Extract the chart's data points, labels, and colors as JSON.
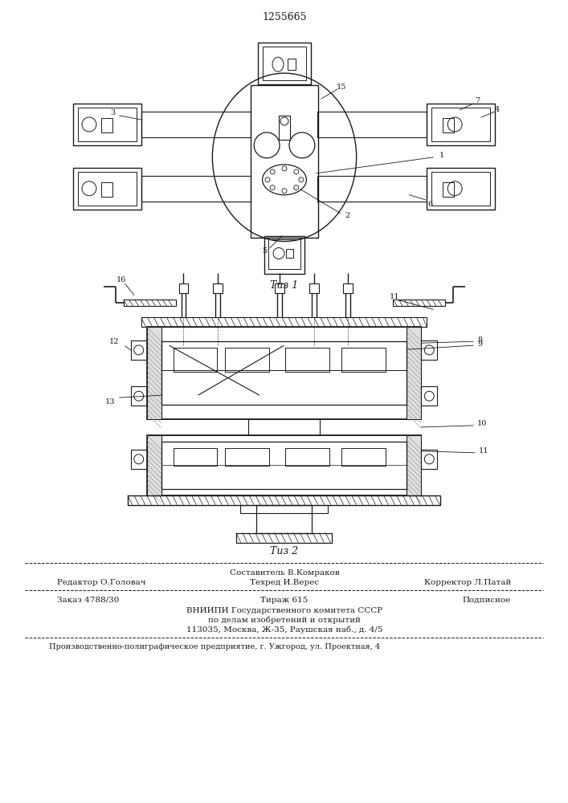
{
  "patent_number": "1255665",
  "fig1_label": "Τиз 1",
  "fig2_label": "Τиз 2",
  "footer_composit": "Составитель В.Комраков",
  "footer_editor": "Редактор О.Головач",
  "footer_techred": "Техред И.Верес",
  "footer_correct": "Корректор Л.Патай",
  "footer_order": "Заказ 4788/30",
  "footer_tiraz": "Тираж 615",
  "footer_podp": "Подписное",
  "footer_vniip": "ВНИИПИ Государственного комитета СССР",
  "footer_po": "по делам изобретений и открытий",
  "footer_addr": "113035, Москва, Ж-35, Раушская наб., д. 4/5",
  "footer_prod": "Производственно-полиграфическое предприятие, г. Ужгород, ул. Проектная, 4",
  "bg_color": "#ffffff",
  "fg_color": "#1a1a1a"
}
